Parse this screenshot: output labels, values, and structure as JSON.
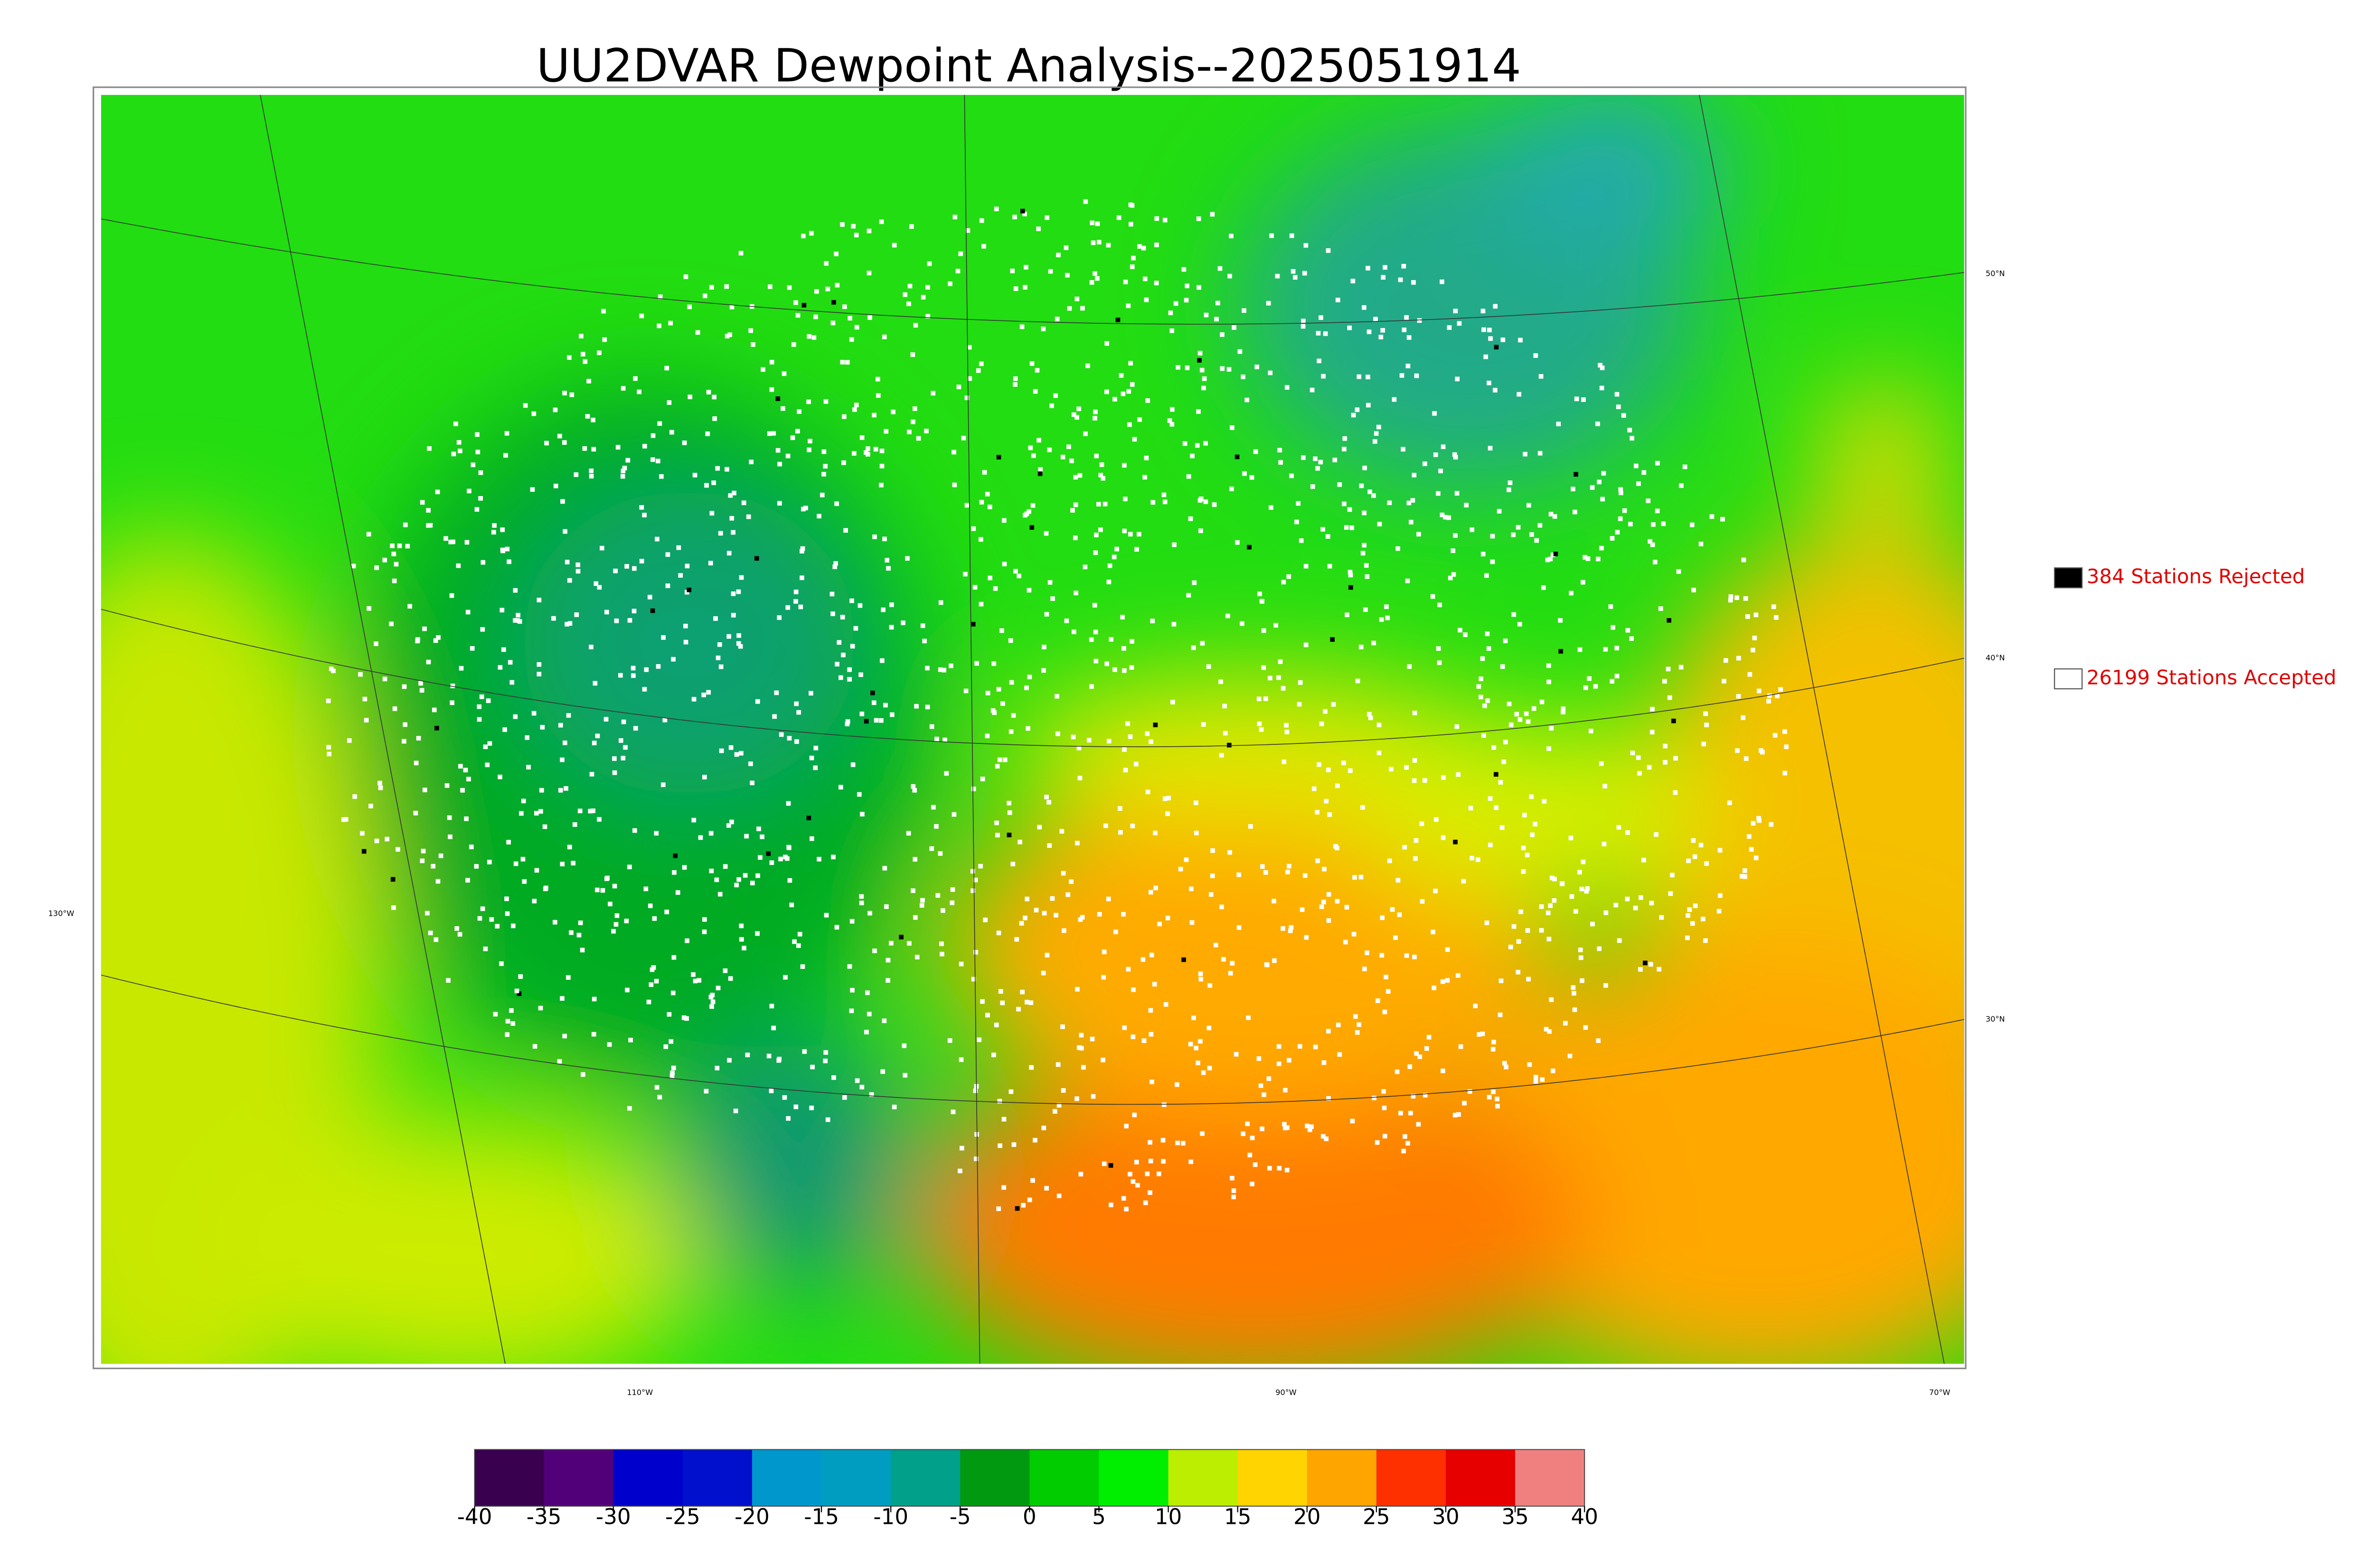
{
  "title": "UU2DVAR Dewpoint Analysis--2025051914",
  "legend": [
    {
      "label": "384 Stations Rejected",
      "color": "#000000"
    },
    {
      "label": "26199 Stations Accepted",
      "color": "#ffffff"
    }
  ],
  "graticule": {
    "latitudes": [
      "50°N",
      "40°N",
      "30°N"
    ],
    "longitudes": [
      "130°W",
      "110°W",
      "90°W",
      "70°W"
    ]
  },
  "colorbar": {
    "lim": [
      -40,
      40
    ],
    "ticks": [
      -40,
      -35,
      -30,
      -25,
      -20,
      -15,
      -10,
      -5,
      0,
      5,
      10,
      15,
      20,
      25,
      30,
      35,
      40
    ],
    "colors": [
      "#3a0050",
      "#52007a",
      "#0000cc",
      "#0010cc",
      "#0098cc",
      "#009dc0",
      "#00a08a",
      "#009910",
      "#00cc00",
      "#00ee00",
      "#bbee00",
      "#ffd400",
      "#ffa500",
      "#ff3000",
      "#e60000",
      "#f08080"
    ]
  }
}
